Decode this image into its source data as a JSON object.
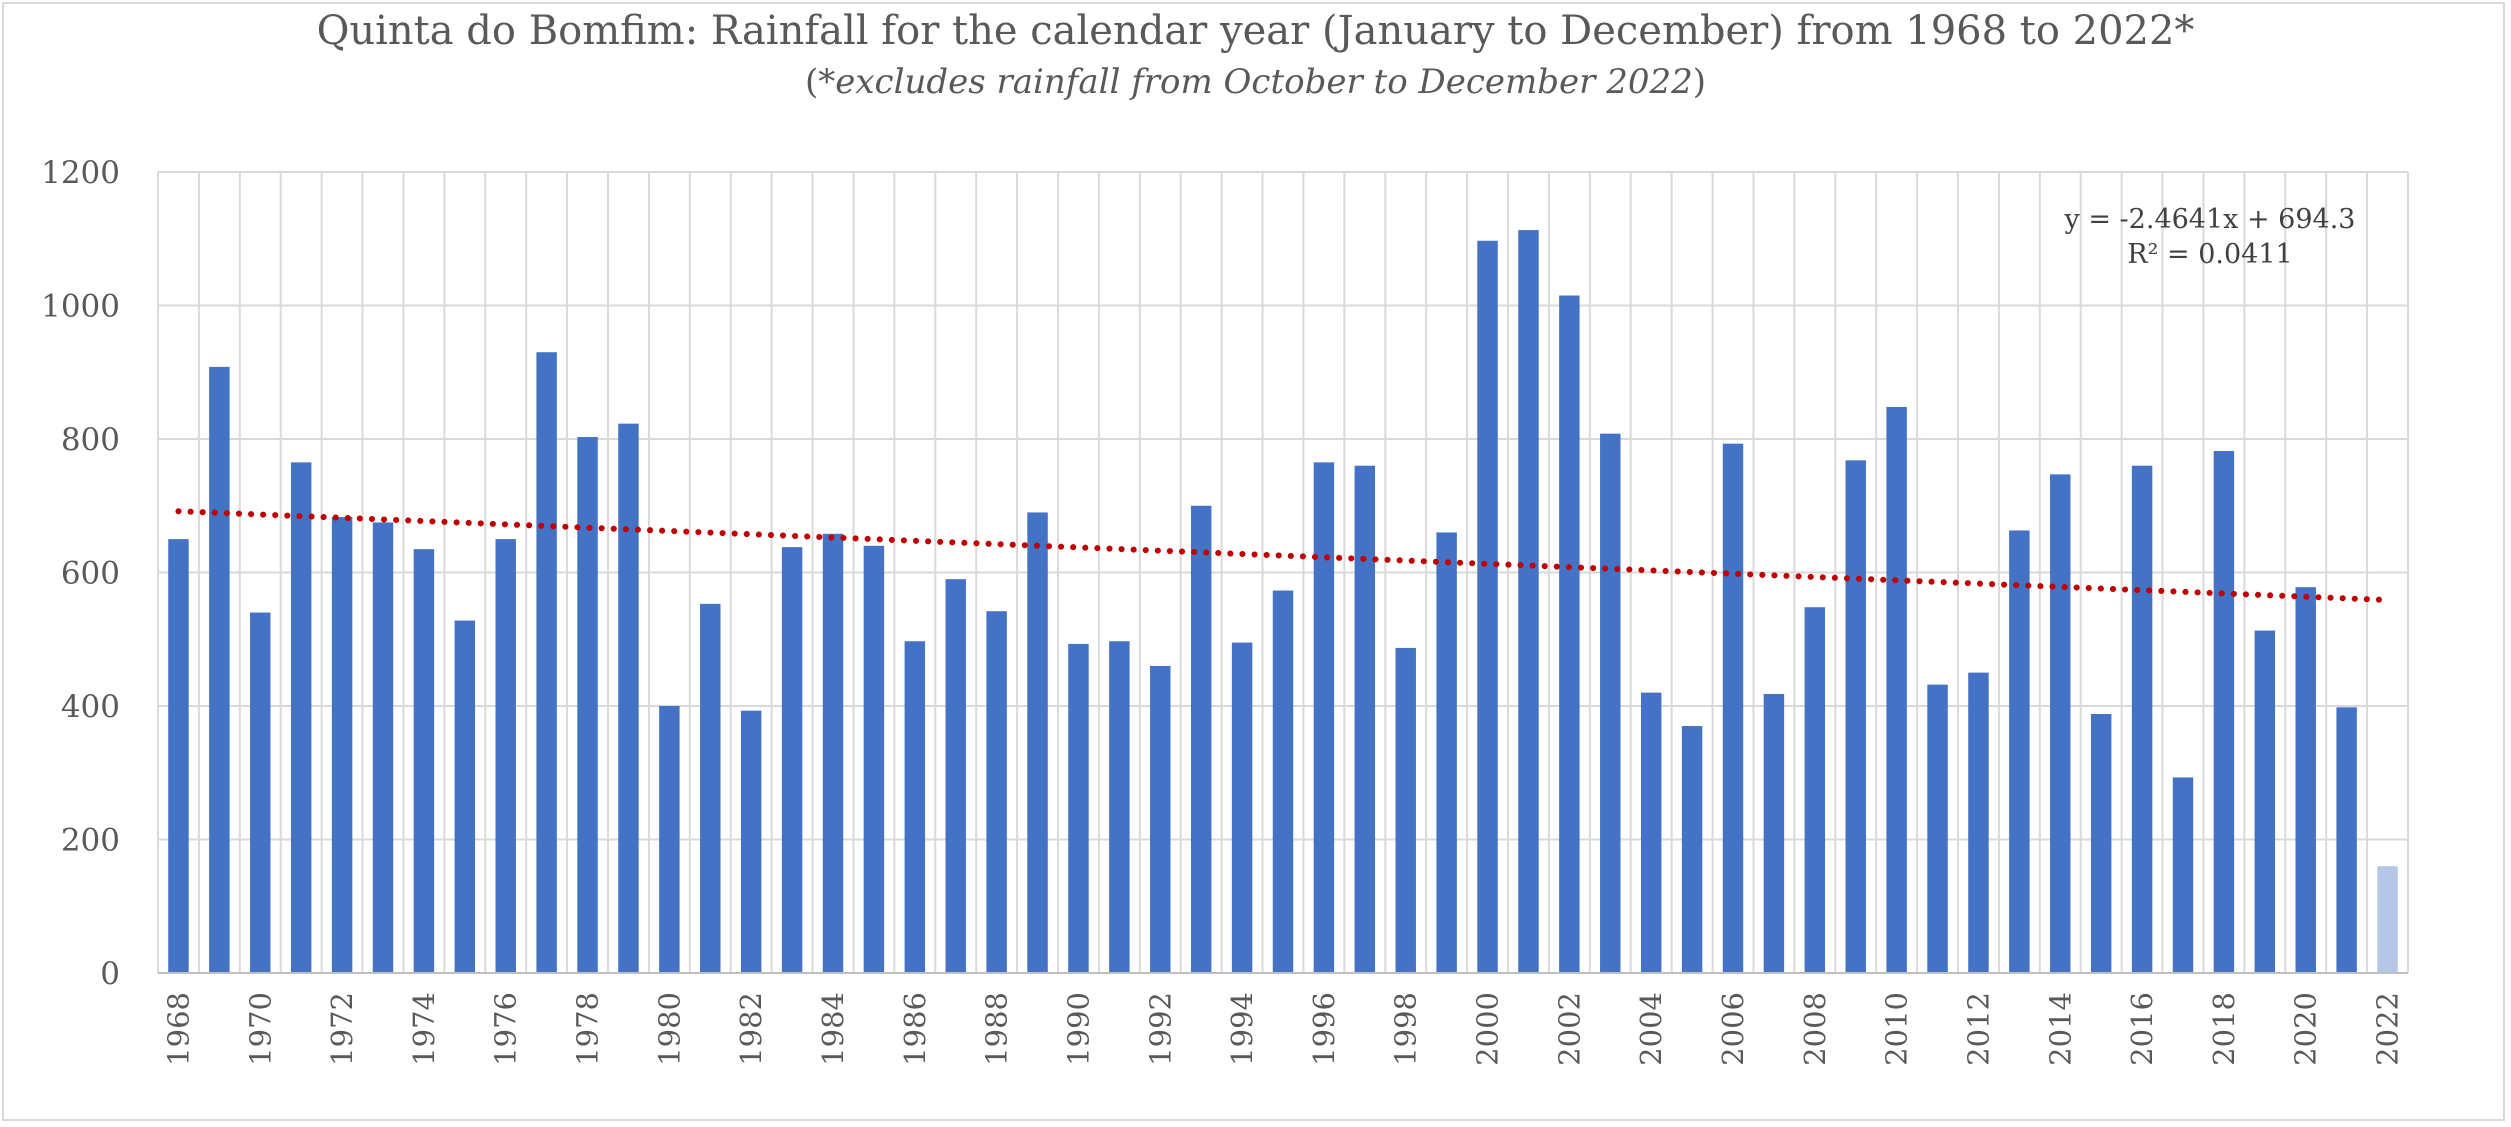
{
  "colors": {
    "bar": "#4472c4",
    "bar_partial": "#b4c7e7",
    "trend": "#c00000",
    "grid": "#d9d9d9",
    "text": "#595959"
  },
  "chart_data": {
    "type": "bar",
    "title": "Quinta do Bomfim: Rainfall for the calendar year (January to December) from 1968 to 2022*",
    "subtitle_open": "(",
    "subtitle_italic": "*excludes rainfall from October to December 2022",
    "subtitle_close": ")",
    "xlabel": "",
    "ylabel": "",
    "ylim": [
      0,
      1200
    ],
    "yticks": [
      "0",
      "200",
      "400",
      "600",
      "800",
      "1000",
      "1200"
    ],
    "grid": true,
    "legend": "none",
    "categories": [
      "1968",
      "1969",
      "1970",
      "1971",
      "1972",
      "1973",
      "1974",
      "1975",
      "1976",
      "1977",
      "1978",
      "1979",
      "1980",
      "1981",
      "1982",
      "1983",
      "1984",
      "1985",
      "1986",
      "1987",
      "1988",
      "1989",
      "1990",
      "1991",
      "1992",
      "1993",
      "1994",
      "1995",
      "1996",
      "1997",
      "1998",
      "1999",
      "2000",
      "2001",
      "2002",
      "2003",
      "2004",
      "2005",
      "2006",
      "2007",
      "2008",
      "2009",
      "2010",
      "2011",
      "2012",
      "2013",
      "2014",
      "2015",
      "2016",
      "2017",
      "2018",
      "2019",
      "2020",
      "2021",
      "2022"
    ],
    "xtick_labels": [
      "1968",
      "1970",
      "1972",
      "1974",
      "1976",
      "1978",
      "1980",
      "1982",
      "1984",
      "1986",
      "1988",
      "1990",
      "1992",
      "1994",
      "1996",
      "1998",
      "2000",
      "2002",
      "2004",
      "2006",
      "2008",
      "2010",
      "2012",
      "2014",
      "2016",
      "2018",
      "2020",
      "2022"
    ],
    "values": [
      650,
      908,
      540,
      765,
      683,
      675,
      635,
      528,
      650,
      930,
      803,
      823,
      400,
      553,
      393,
      638,
      658,
      640,
      497,
      590,
      542,
      690,
      493,
      497,
      460,
      700,
      495,
      573,
      765,
      760,
      487,
      660,
      1097,
      1113,
      1015,
      808,
      420,
      370,
      793,
      418,
      548,
      768,
      848,
      432,
      450,
      663,
      747,
      388,
      760,
      293,
      782,
      513,
      578,
      398,
      160
    ],
    "partial_category": "2022",
    "trendline": {
      "type": "linear",
      "slope": -2.4641,
      "intercept": 694.3,
      "equation": "y = -2.4641x + 694.3",
      "r_squared": "R² = 0.0411"
    }
  }
}
